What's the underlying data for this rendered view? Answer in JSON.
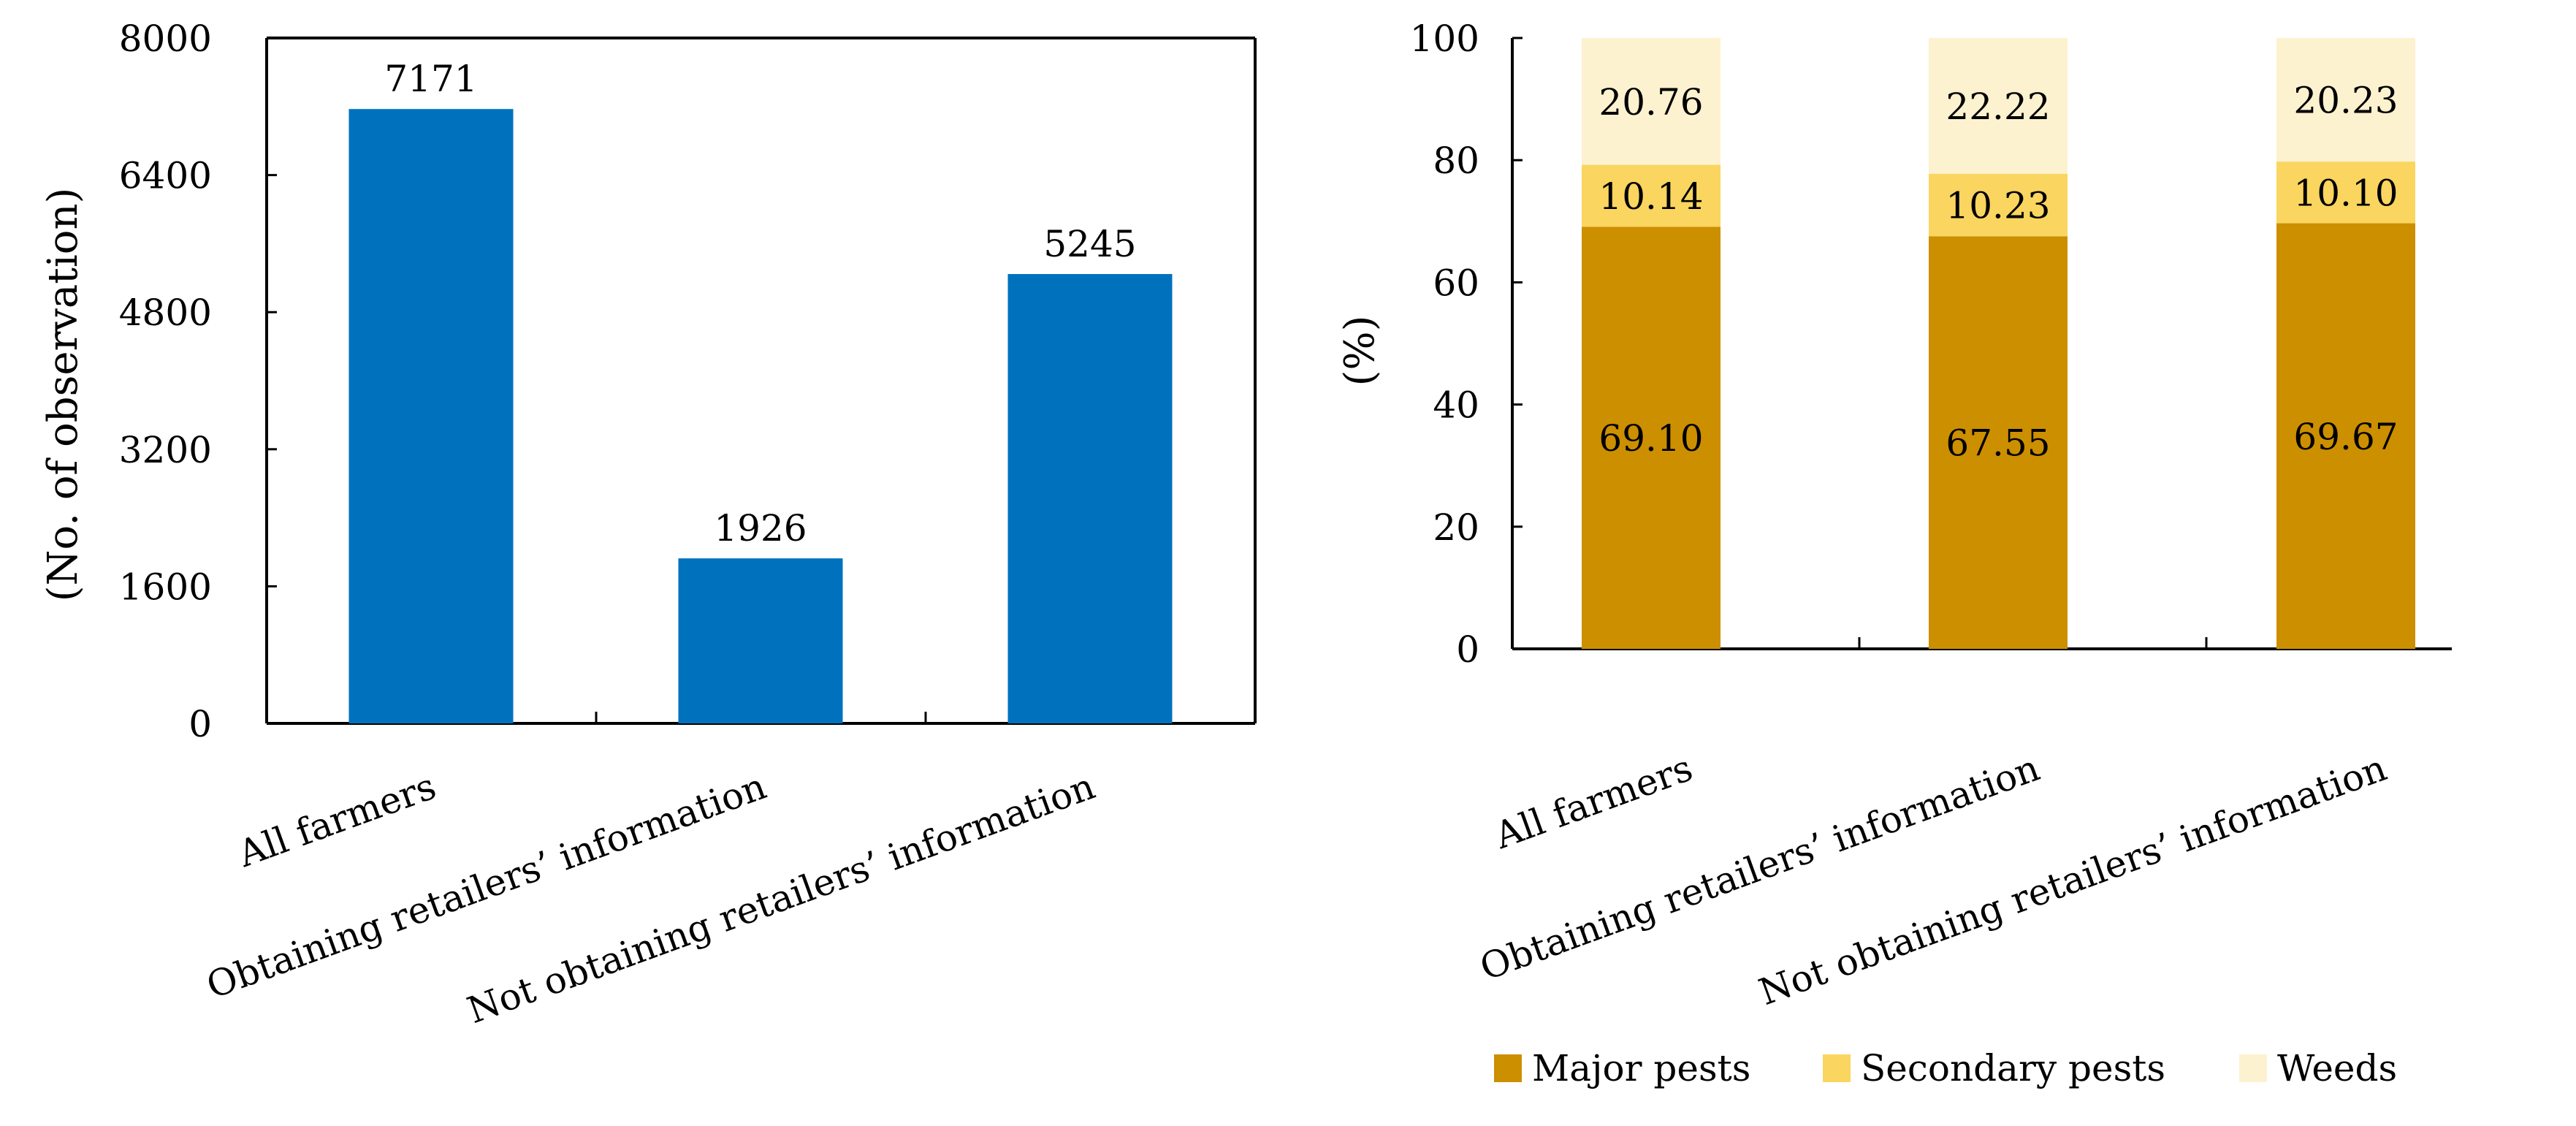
{
  "chart_data": [
    {
      "type": "bar",
      "title": "",
      "xlabel": "",
      "ylabel": "(No. of observation)",
      "ylim": [
        0,
        8000
      ],
      "yticks": [
        0,
        1600,
        3200,
        4800,
        6400,
        8000
      ],
      "categories": [
        "All farmers",
        "Obtaining retailers’ information",
        "Not obtaining retailers’ information"
      ],
      "values": [
        7171,
        1926,
        5245
      ],
      "data_labels": [
        "7171",
        "1926",
        "5245"
      ],
      "color": "#0072BD",
      "grid": false
    },
    {
      "type": "bar",
      "stacked": true,
      "title": "",
      "xlabel": "",
      "ylabel": "(%)",
      "ylim": [
        0,
        100
      ],
      "yticks": [
        0,
        20,
        40,
        60,
        80,
        100
      ],
      "categories": [
        "All farmers",
        "Obtaining retailers’ information",
        "Not obtaining retailers’ information"
      ],
      "series": [
        {
          "name": "Major pests",
          "color": "#CC8F00",
          "values": [
            69.1,
            67.55,
            69.67
          ],
          "labels": [
            "69.10",
            "67.55",
            "69.67"
          ]
        },
        {
          "name": "Secondary pests",
          "color": "#FAD55F",
          "values": [
            10.14,
            10.23,
            10.1
          ],
          "labels": [
            "10.14",
            "10.23",
            "10.10"
          ]
        },
        {
          "name": "Weeds",
          "color": "#FDF2CF",
          "values": [
            20.76,
            22.22,
            20.23
          ],
          "labels": [
            "20.76",
            "22.22",
            "20.23"
          ]
        }
      ],
      "legend_position": "bottom",
      "grid": false
    }
  ]
}
